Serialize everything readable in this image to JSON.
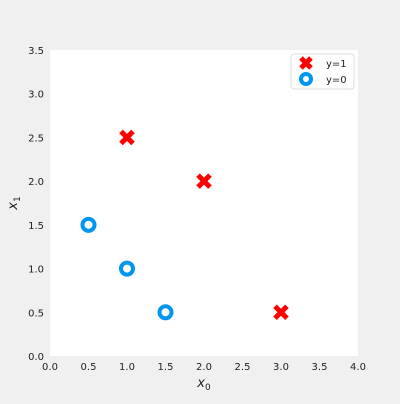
{
  "chart_data": {
    "type": "scatter",
    "xlabel_base": "x",
    "xlabel_sub": "0",
    "ylabel_base": "x",
    "ylabel_sub": "1",
    "xlim": [
      0,
      4
    ],
    "ylim": [
      0,
      3.5
    ],
    "xticks": [
      "0.0",
      "0.5",
      "1.0",
      "1.5",
      "2.0",
      "2.5",
      "3.0",
      "3.5",
      "4.0"
    ],
    "yticks": [
      "0.0",
      "0.5",
      "1.0",
      "1.5",
      "2.0",
      "2.5",
      "3.0",
      "3.5"
    ],
    "grid": false,
    "legend_position": "top-right",
    "series": [
      {
        "name": "y=1",
        "marker": "x",
        "color": "#ff0000",
        "points": [
          [
            1.0,
            2.5
          ],
          [
            2.0,
            2.0
          ],
          [
            3.0,
            0.5
          ]
        ]
      },
      {
        "name": "y=0",
        "marker": "o",
        "color": "#0096f0",
        "points": [
          [
            0.5,
            1.5
          ],
          [
            1.0,
            1.0
          ],
          [
            1.5,
            0.5
          ]
        ]
      }
    ]
  }
}
